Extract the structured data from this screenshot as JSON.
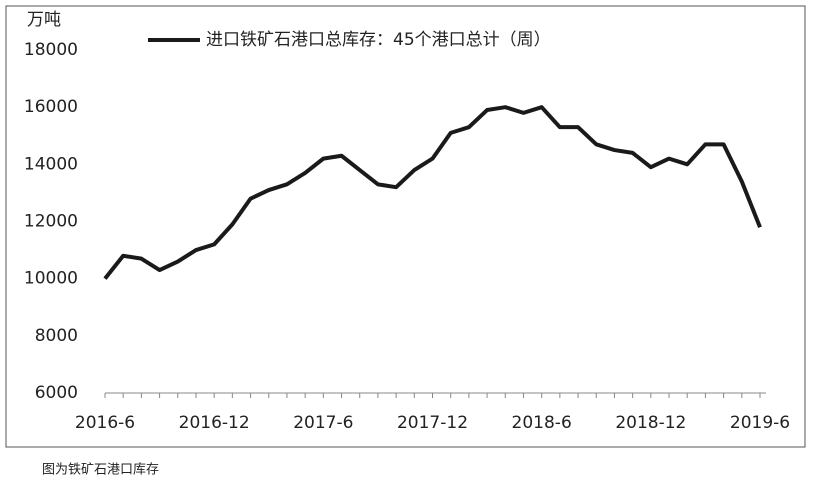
{
  "chart_data": {
    "type": "line",
    "unit_label": "万吨",
    "caption": "图为铁矿石港口库存",
    "categories": [
      "2016-6",
      null,
      null,
      null,
      null,
      null,
      "2016-12",
      null,
      null,
      null,
      null,
      null,
      "2017-6",
      null,
      null,
      null,
      null,
      null,
      "2017-12",
      null,
      null,
      null,
      null,
      null,
      "2018-6",
      null,
      null,
      null,
      null,
      null,
      "2018-12",
      null,
      null,
      null,
      null,
      null,
      "2019-6"
    ],
    "series": [
      {
        "name": "进口铁矿石港口总库存：45个港口总计（周）",
        "color": "#1a1a1a",
        "values": [
          10000,
          10800,
          10700,
          10300,
          10600,
          11000,
          11200,
          11900,
          12800,
          13100,
          13300,
          13700,
          14200,
          14300,
          13800,
          13300,
          13200,
          13800,
          14200,
          15100,
          15300,
          15900,
          16000,
          15800,
          16000,
          15300,
          15300,
          14700,
          14500,
          14400,
          13900,
          14200,
          14000,
          14700,
          14700,
          13400,
          11800
        ]
      }
    ],
    "ylim": [
      6000,
      18000
    ],
    "yticks": [
      6000,
      8000,
      10000,
      12000,
      14000,
      16000,
      18000
    ],
    "grid": false,
    "legend": "top"
  }
}
